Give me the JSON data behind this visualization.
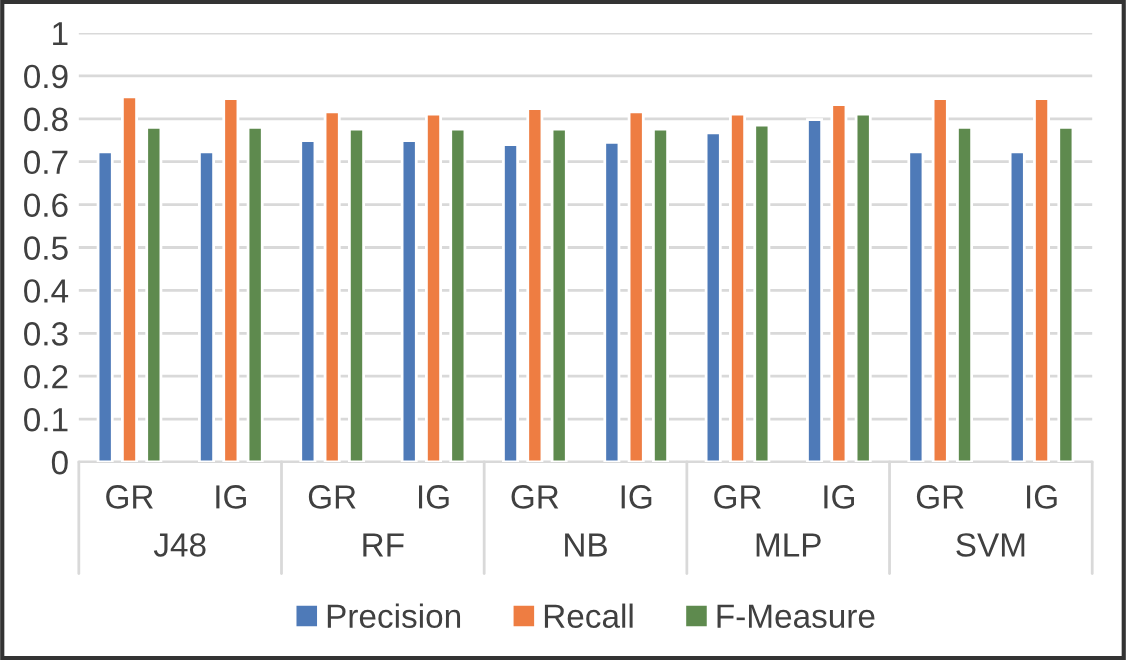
{
  "chart_data": {
    "type": "bar",
    "categories": [
      "GR",
      "IG",
      "GR",
      "IG",
      "GR",
      "IG",
      "GR",
      "IG",
      "GR",
      "IG"
    ],
    "annotations": [
      "J48",
      "RF",
      "NB",
      "MLP",
      "SVM"
    ],
    "series": [
      {
        "name": "Precision",
        "color": "#4e7ab8",
        "values": [
          0.723,
          0.723,
          0.749,
          0.749,
          0.74,
          0.745,
          0.767,
          0.798,
          0.723,
          0.723
        ]
      },
      {
        "name": "Recall",
        "color": "#ee7d42",
        "values": [
          0.851,
          0.847,
          0.816,
          0.811,
          0.824,
          0.816,
          0.811,
          0.833,
          0.847,
          0.847
        ]
      },
      {
        "name": "F-Measure",
        "color": "#5e8a4e",
        "values": [
          0.78,
          0.78,
          0.776,
          0.776,
          0.776,
          0.776,
          0.785,
          0.811,
          0.78,
          0.78
        ]
      }
    ],
    "ylim": [
      0,
      1
    ],
    "yticks": [
      0,
      0.1,
      0.2,
      0.3,
      0.4,
      0.5,
      0.6,
      0.7,
      0.8,
      0.9,
      1
    ],
    "grid": "y",
    "legend": "bottom"
  }
}
